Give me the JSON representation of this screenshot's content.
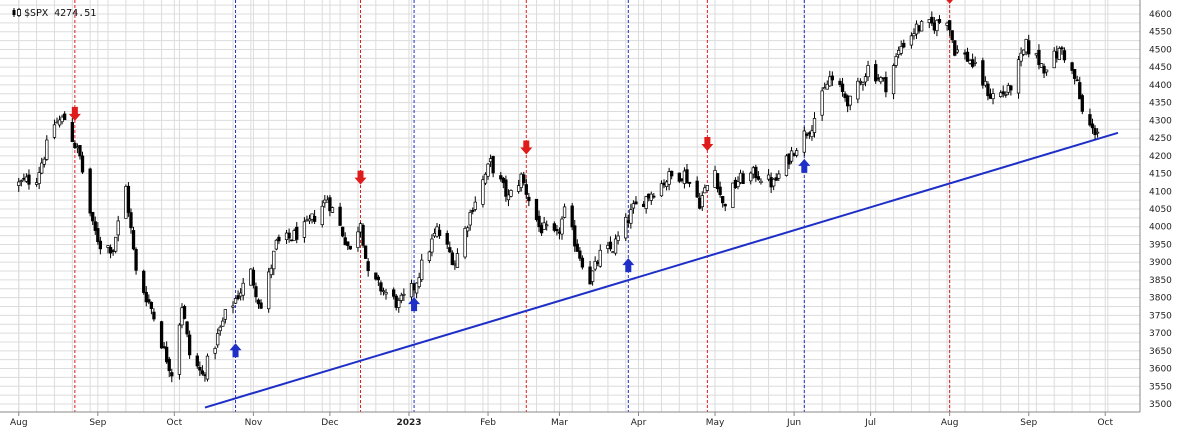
{
  "chart_data": {
    "type": "candlestick",
    "ticker_label": "$SPX 4274.51",
    "legend_icon": "candlestick-icon",
    "ylim": [
      3480,
      4620
    ],
    "y_ticks": [
      3500,
      3550,
      3600,
      3650,
      3700,
      3750,
      3800,
      3850,
      3900,
      3950,
      4000,
      4050,
      4100,
      4150,
      4200,
      4250,
      4300,
      4350,
      4400,
      4450,
      4500,
      4550,
      4600
    ],
    "x_month_labels": [
      {
        "label": "Aug",
        "date": "2022-08-01",
        "bold": false
      },
      {
        "label": "Sep",
        "date": "2022-09-01",
        "bold": false
      },
      {
        "label": "Oct",
        "date": "2022-10-01",
        "bold": false
      },
      {
        "label": "Nov",
        "date": "2022-11-01",
        "bold": false
      },
      {
        "label": "Dec",
        "date": "2022-12-01",
        "bold": false
      },
      {
        "label": "2023",
        "date": "2023-01-01",
        "bold": true
      },
      {
        "label": "Feb",
        "date": "2023-02-01",
        "bold": false
      },
      {
        "label": "Mar",
        "date": "2023-03-01",
        "bold": false
      },
      {
        "label": "Apr",
        "date": "2023-04-01",
        "bold": false
      },
      {
        "label": "May",
        "date": "2023-05-01",
        "bold": false
      },
      {
        "label": "Jun",
        "date": "2023-06-01",
        "bold": false
      },
      {
        "label": "Jul",
        "date": "2023-07-01",
        "bold": false
      },
      {
        "label": "Aug",
        "date": "2023-08-01",
        "bold": false
      },
      {
        "label": "Sep",
        "date": "2023-09-01",
        "bold": false
      },
      {
        "label": "Oct",
        "date": "2023-10-01",
        "bold": false
      }
    ],
    "close_path": [
      [
        "2022-08-01",
        4120
      ],
      [
        "2022-08-08",
        4140
      ],
      [
        "2022-08-15",
        4290
      ],
      [
        "2022-08-19",
        4305
      ],
      [
        "2022-08-25",
        4195
      ],
      [
        "2022-08-30",
        4000
      ],
      [
        "2022-09-02",
        3950
      ],
      [
        "2022-09-07",
        3940
      ],
      [
        "2022-09-12",
        4110
      ],
      [
        "2022-09-16",
        3870
      ],
      [
        "2022-09-22",
        3770
      ],
      [
        "2022-09-27",
        3650
      ],
      [
        "2022-09-30",
        3590
      ],
      [
        "2022-10-04",
        3780
      ],
      [
        "2022-10-07",
        3640
      ],
      [
        "2022-10-12",
        3580
      ],
      [
        "2022-10-17",
        3670
      ],
      [
        "2022-10-21",
        3750
      ],
      [
        "2022-10-27",
        3820
      ],
      [
        "2022-10-31",
        3870
      ],
      [
        "2022-11-04",
        3770
      ],
      [
        "2022-11-10",
        3950
      ],
      [
        "2022-11-16",
        3970
      ],
      [
        "2022-11-22",
        4000
      ],
      [
        "2022-11-30",
        4080
      ],
      [
        "2022-12-05",
        4000
      ],
      [
        "2022-12-09",
        3930
      ],
      [
        "2022-12-13",
        4020
      ],
      [
        "2022-12-16",
        3860
      ],
      [
        "2022-12-22",
        3820
      ],
      [
        "2022-12-28",
        3780
      ],
      [
        "2023-01-03",
        3830
      ],
      [
        "2023-01-06",
        3890
      ],
      [
        "2023-01-12",
        3990
      ],
      [
        "2023-01-19",
        3900
      ],
      [
        "2023-01-26",
        4060
      ],
      [
        "2023-02-02",
        4180
      ],
      [
        "2023-02-09",
        4080
      ],
      [
        "2023-02-14",
        4140
      ],
      [
        "2023-02-21",
        4000
      ],
      [
        "2023-02-28",
        3970
      ],
      [
        "2023-03-03",
        4040
      ],
      [
        "2023-03-09",
        3920
      ],
      [
        "2023-03-13",
        3850
      ],
      [
        "2023-03-17",
        3920
      ],
      [
        "2023-03-22",
        3940
      ],
      [
        "2023-03-30",
        4050
      ],
      [
        "2023-04-05",
        4090
      ],
      [
        "2023-04-13",
        4140
      ],
      [
        "2023-04-19",
        4150
      ],
      [
        "2023-04-25",
        4070
      ],
      [
        "2023-05-01",
        4160
      ],
      [
        "2023-05-04",
        4060
      ],
      [
        "2023-05-10",
        4130
      ],
      [
        "2023-05-17",
        4150
      ],
      [
        "2023-05-24",
        4120
      ],
      [
        "2023-06-01",
        4220
      ],
      [
        "2023-06-08",
        4290
      ],
      [
        "2023-06-15",
        4420
      ],
      [
        "2023-06-23",
        4350
      ],
      [
        "2023-06-30",
        4450
      ],
      [
        "2023-07-07",
        4400
      ],
      [
        "2023-07-13",
        4510
      ],
      [
        "2023-07-19",
        4560
      ],
      [
        "2023-07-26",
        4570
      ],
      [
        "2023-07-31",
        4590
      ],
      [
        "2023-08-03",
        4500
      ],
      [
        "2023-08-09",
        4470
      ],
      [
        "2023-08-17",
        4370
      ],
      [
        "2023-08-24",
        4380
      ],
      [
        "2023-08-31",
        4510
      ],
      [
        "2023-09-07",
        4450
      ],
      [
        "2023-09-14",
        4500
      ],
      [
        "2023-09-20",
        4400
      ],
      [
        "2023-09-22",
        4320
      ],
      [
        "2023-09-26",
        4270
      ],
      [
        "2023-09-28",
        4274.51
      ]
    ],
    "trendline": {
      "start": [
        "2022-10-13",
        3490
      ],
      "end": [
        "2023-10-06",
        4265
      ],
      "color": "#1e2fc8"
    },
    "signals": [
      {
        "date": "2022-08-23",
        "type": "sell",
        "price": 4310,
        "color": "#e01b1b"
      },
      {
        "date": "2022-12-13",
        "type": "sell",
        "price": 4130,
        "color": "#e01b1b"
      },
      {
        "date": "2023-02-16",
        "type": "sell",
        "price": 4215,
        "color": "#e01b1b"
      },
      {
        "date": "2023-04-28",
        "type": "sell",
        "price": 4225,
        "color": "#e01b1b"
      },
      {
        "date": "2023-08-01",
        "type": "sell",
        "price": 4640,
        "color": "#e01b1b"
      },
      {
        "date": "2022-10-25",
        "type": "buy",
        "price": 3660,
        "color": "#1e2fc8"
      },
      {
        "date": "2023-01-03",
        "type": "buy",
        "price": 3790,
        "color": "#1e2fc8"
      },
      {
        "date": "2023-03-28",
        "type": "buy",
        "price": 3900,
        "color": "#1e2fc8"
      },
      {
        "date": "2023-06-05",
        "type": "buy",
        "price": 4180,
        "color": "#1e2fc8"
      }
    ],
    "grid": true,
    "colors": {
      "sell": "#e01b1b",
      "buy": "#1e2fc8",
      "candle": "#000000",
      "grid": "#dcdcdc"
    }
  }
}
